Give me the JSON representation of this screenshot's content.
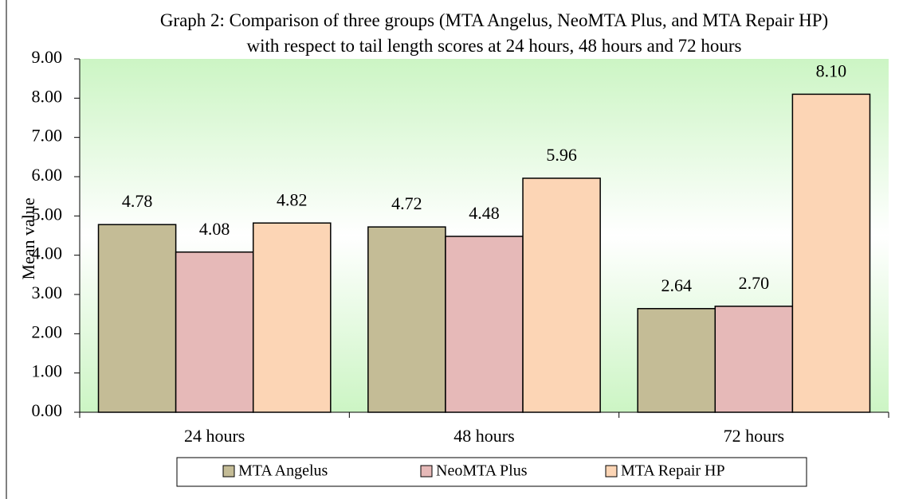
{
  "chart_data": {
    "type": "bar",
    "title": "Graph 2: Comparison of three groups (MTA Angelus, NeoMTA Plus, and MTA Repair HP) with respect to tail length scores at 24 hours, 48 hours and 72 hours",
    "y_label": "Mean value",
    "categories": [
      "24 hours",
      "48 hours",
      "72 hours"
    ],
    "series": [
      {
        "name": "MTA Angelus",
        "color": "#c4bc96",
        "values": [
          4.78,
          4.72,
          2.64
        ],
        "value_labels": [
          "4.78",
          "4.72",
          "2.64"
        ]
      },
      {
        "name": "NeoMTA Plus",
        "color": "#e6b9b8",
        "values": [
          4.08,
          4.48,
          2.7
        ],
        "value_labels": [
          "4.08",
          "4.48",
          "2.70"
        ]
      },
      {
        "name": "MTA Repair HP",
        "color": "#fcd5b5",
        "values": [
          4.82,
          5.96,
          8.1
        ],
        "value_labels": [
          "4.82",
          "5.96",
          "8.10"
        ]
      }
    ],
    "ylim": [
      0,
      9
    ],
    "yticks": [
      {
        "value": 0,
        "label": "0.00"
      },
      {
        "value": 1,
        "label": "1.00"
      },
      {
        "value": 2,
        "label": "2.00"
      },
      {
        "value": 3,
        "label": "3.00"
      },
      {
        "value": 4,
        "label": "4.00"
      },
      {
        "value": 5,
        "label": "5.00"
      },
      {
        "value": 6,
        "label": "6.00"
      },
      {
        "value": 7,
        "label": "7.00"
      },
      {
        "value": 8,
        "label": "8.00"
      },
      {
        "value": 9,
        "label": "9.00"
      }
    ],
    "legend": "bottom"
  }
}
